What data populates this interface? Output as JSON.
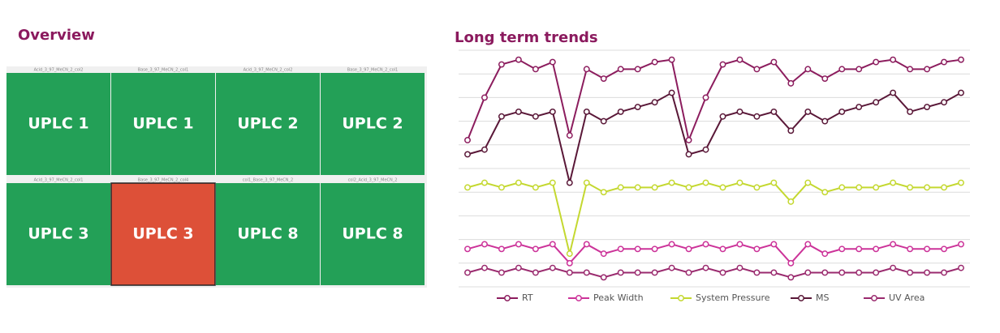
{
  "overview": {
    "title": "Overview",
    "tiles": [
      {
        "caption": "Acid_3_97_MeCN_2_col2",
        "label": "UPLC 1",
        "color": "#23a057"
      },
      {
        "caption": "Base_3_97_MeCN_2_col1",
        "label": "UPLC 1",
        "color": "#23a057"
      },
      {
        "caption": "Acid_3_97_MeCN_2_col2",
        "label": "UPLC 2",
        "color": "#23a057"
      },
      {
        "caption": "Base_3_97_MeCN_2_col1",
        "label": "UPLC 2",
        "color": "#23a057"
      },
      {
        "caption": "Acid_3_97_MeCN_2_col1",
        "label": "UPLC 3",
        "color": "#23a057"
      },
      {
        "caption": "Base_3_97_MeCN_2_col4",
        "label": "UPLC 3",
        "color": "#dd5038"
      },
      {
        "caption": "col1_Base_3_97_MeCN_2",
        "label": "UPLC 8",
        "color": "#23a057"
      },
      {
        "caption": "col2_Acid_3_97_MeCN_2",
        "label": "UPLC 8",
        "color": "#23a057"
      }
    ]
  },
  "chart_data": {
    "type": "line",
    "title": "Long term trends",
    "categories": [
      null,
      null,
      null,
      null,
      null,
      null,
      null,
      null,
      null,
      null,
      null,
      null,
      null,
      null,
      null,
      null,
      null,
      null,
      null,
      null,
      null,
      null,
      null,
      null,
      null,
      null,
      null,
      null,
      null,
      null
    ],
    "ylim": [
      0,
      10
    ],
    "ygrid": [
      0,
      1,
      2,
      3,
      4,
      5,
      6,
      7,
      8,
      9,
      10
    ],
    "grid": true,
    "series": [
      {
        "name": "RT",
        "color": "#8c1d5e",
        "values": [
          6.2,
          8.0,
          9.4,
          9.6,
          9.2,
          9.5,
          6.4,
          9.2,
          8.8,
          9.2,
          9.2,
          9.5,
          9.6,
          6.2,
          8.0,
          9.4,
          9.6,
          9.2,
          9.5,
          8.6,
          9.2,
          8.8,
          9.2,
          9.2,
          9.5,
          9.6,
          9.2,
          9.2,
          9.5,
          9.6
        ]
      },
      {
        "name": "Peak Width",
        "color": "#cc3399",
        "values": [
          1.6,
          1.8,
          1.6,
          1.8,
          1.6,
          1.8,
          1.0,
          1.8,
          1.4,
          1.6,
          1.6,
          1.6,
          1.8,
          1.6,
          1.8,
          1.6,
          1.8,
          1.6,
          1.8,
          1.0,
          1.8,
          1.4,
          1.6,
          1.6,
          1.6,
          1.8,
          1.6,
          1.6,
          1.6,
          1.8
        ]
      },
      {
        "name": "System Pressure",
        "color": "#c4d830",
        "values": [
          4.2,
          4.4,
          4.2,
          4.4,
          4.2,
          4.4,
          1.4,
          4.4,
          4.0,
          4.2,
          4.2,
          4.2,
          4.4,
          4.2,
          4.4,
          4.2,
          4.4,
          4.2,
          4.4,
          3.6,
          4.4,
          4.0,
          4.2,
          4.2,
          4.2,
          4.4,
          4.2,
          4.2,
          4.2,
          4.4
        ]
      },
      {
        "name": "MS",
        "color": "#5a1838",
        "values": [
          5.6,
          5.8,
          7.2,
          7.4,
          7.2,
          7.4,
          4.4,
          7.4,
          7.0,
          7.4,
          7.6,
          7.8,
          8.2,
          5.6,
          5.8,
          7.2,
          7.4,
          7.2,
          7.4,
          6.6,
          7.4,
          7.0,
          7.4,
          7.6,
          7.8,
          8.2,
          7.4,
          7.6,
          7.8,
          8.2
        ]
      },
      {
        "name": "UV Area",
        "color": "#9a2a6e",
        "values": [
          0.6,
          0.8,
          0.6,
          0.8,
          0.6,
          0.8,
          0.6,
          0.6,
          0.4,
          0.6,
          0.6,
          0.6,
          0.8,
          0.6,
          0.8,
          0.6,
          0.8,
          0.6,
          0.6,
          0.4,
          0.6,
          0.6,
          0.6,
          0.6,
          0.6,
          0.8,
          0.6,
          0.6,
          0.6,
          0.8
        ]
      }
    ]
  }
}
